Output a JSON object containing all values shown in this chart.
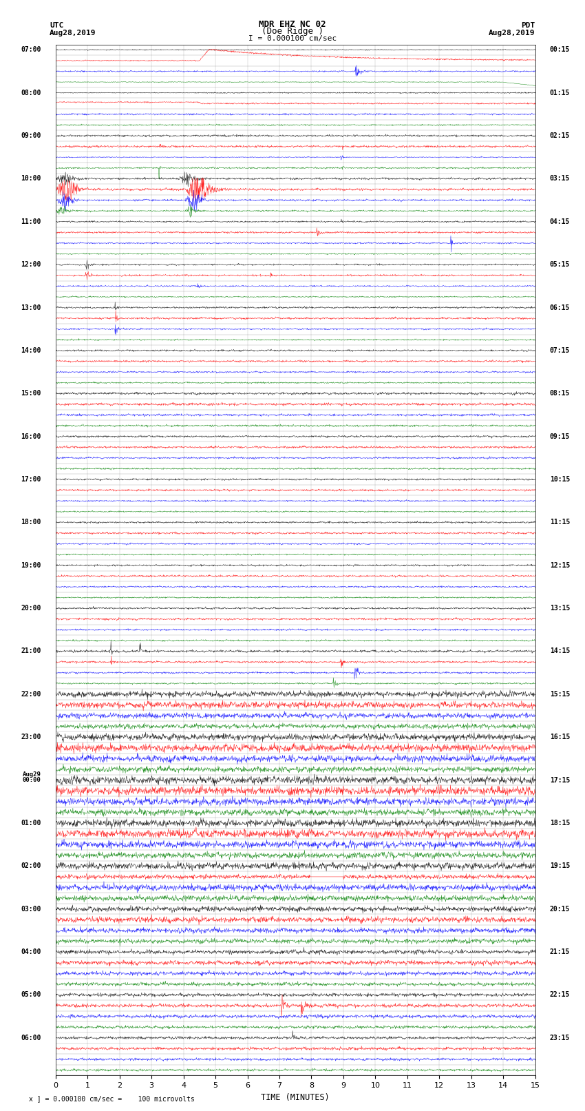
{
  "title_line1": "MDR EHZ NC 02",
  "title_line2": "(Doe Ridge )",
  "scale_text": "I = 0.000100 cm/sec",
  "left_label_top": "UTC",
  "left_label_date": "Aug28,2019",
  "right_label_top": "PDT",
  "right_label_date": "Aug28,2019",
  "xlabel": "TIME (MINUTES)",
  "footer_text": "x ] = 0.000100 cm/sec =    100 microvolts",
  "utc_hour_list": [
    "07:00",
    "08:00",
    "09:00",
    "10:00",
    "11:00",
    "12:00",
    "13:00",
    "14:00",
    "15:00",
    "16:00",
    "17:00",
    "18:00",
    "19:00",
    "20:00",
    "21:00",
    "22:00",
    "23:00",
    "Aug29\n00:00",
    "01:00",
    "02:00",
    "03:00",
    "04:00",
    "05:00",
    "06:00"
  ],
  "pdt_hour_list": [
    "00:15",
    "01:15",
    "02:15",
    "03:15",
    "04:15",
    "05:15",
    "06:15",
    "07:15",
    "08:15",
    "09:15",
    "10:15",
    "11:15",
    "12:15",
    "13:15",
    "14:15",
    "15:15",
    "16:15",
    "17:15",
    "18:15",
    "19:15",
    "20:15",
    "21:15",
    "22:15",
    "23:15"
  ],
  "n_rows": 96,
  "n_cols": 1500,
  "row_colors": [
    "black",
    "red",
    "blue",
    "green"
  ],
  "background_color": "white",
  "xmin": 0,
  "xmax": 15,
  "xticks": [
    0,
    1,
    2,
    3,
    4,
    5,
    6,
    7,
    8,
    9,
    10,
    11,
    12,
    13,
    14,
    15
  ]
}
